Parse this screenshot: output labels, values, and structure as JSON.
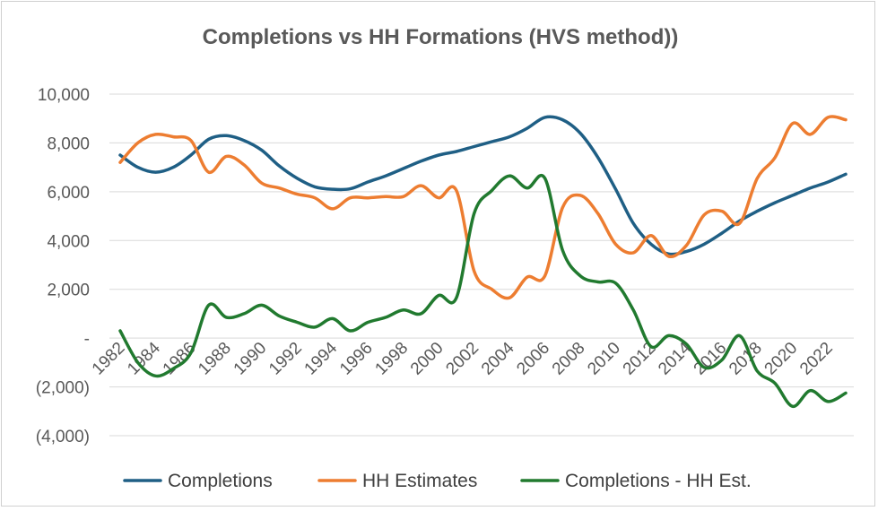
{
  "chart_data": {
    "type": "line",
    "title": "Completions vs HH Formations (HVS method))",
    "xlabel": "",
    "ylabel": "",
    "ylim": [
      -4000,
      10000
    ],
    "grid": true,
    "legend_position": "bottom",
    "y_ticks": [
      {
        "value": 10000,
        "label": "10,000"
      },
      {
        "value": 8000,
        "label": "8,000"
      },
      {
        "value": 6000,
        "label": "6,000"
      },
      {
        "value": 4000,
        "label": "4,000"
      },
      {
        "value": 2000,
        "label": "2,000"
      },
      {
        "value": 0,
        "label": "-"
      },
      {
        "value": -2000,
        "label": "(2,000)"
      },
      {
        "value": -4000,
        "label": "(4,000)"
      }
    ],
    "x": [
      1982,
      1983,
      1984,
      1985,
      1986,
      1987,
      1988,
      1989,
      1990,
      1991,
      1992,
      1993,
      1994,
      1995,
      1996,
      1997,
      1998,
      1999,
      2000,
      2001,
      2002,
      2003,
      2004,
      2005,
      2006,
      2007,
      2008,
      2009,
      2010,
      2011,
      2012,
      2013,
      2014,
      2015,
      2016,
      2017,
      2018,
      2019,
      2020,
      2021,
      2022,
      2023
    ],
    "x_tick_labels": [
      "1982",
      "1984",
      "1986",
      "1988",
      "1990",
      "1992",
      "1994",
      "1996",
      "1998",
      "2000",
      "2002",
      "2004",
      "2006",
      "2008",
      "2010",
      "2012",
      "2014",
      "2016",
      "2018",
      "2020",
      "2022"
    ],
    "series": [
      {
        "name": "Completions",
        "color": "#1f5f85",
        "values": [
          7500,
          7000,
          6800,
          7000,
          7500,
          8150,
          8300,
          8100,
          7700,
          7050,
          6550,
          6200,
          6100,
          6120,
          6400,
          6650,
          6950,
          7250,
          7500,
          7650,
          7850,
          8050,
          8250,
          8600,
          9050,
          8950,
          8400,
          7400,
          6100,
          4700,
          3850,
          3450,
          3550,
          3850,
          4300,
          4800,
          5200,
          5550,
          5850,
          6150,
          6400,
          6720
        ]
      },
      {
        "name": "HH Estimates",
        "color": "#ed7d31",
        "values": [
          7200,
          8000,
          8350,
          8250,
          8100,
          6800,
          7450,
          7100,
          6350,
          6150,
          5900,
          5750,
          5300,
          5750,
          5750,
          5800,
          5800,
          6250,
          5750,
          6050,
          2750,
          2000,
          1650,
          2500,
          2550,
          5350,
          5850,
          5100,
          3850,
          3500,
          4200,
          3350,
          3800,
          5050,
          5200,
          4700,
          6550,
          7400,
          8800,
          8350,
          9050,
          8950
        ]
      },
      {
        "name": "Completions - HH Est.",
        "color": "#217a2f",
        "values": [
          300,
          -1000,
          -1550,
          -1250,
          -600,
          1350,
          850,
          1000,
          1350,
          900,
          650,
          450,
          800,
          300,
          650,
          850,
          1150,
          1000,
          1750,
          1650,
          5100,
          6050,
          6650,
          6150,
          6550,
          3600,
          2550,
          2300,
          2250,
          1150,
          -350,
          100,
          -250,
          -1200,
          -900,
          100,
          -1350,
          -1850,
          -2800,
          -2150,
          -2600,
          -2250
        ]
      }
    ]
  }
}
